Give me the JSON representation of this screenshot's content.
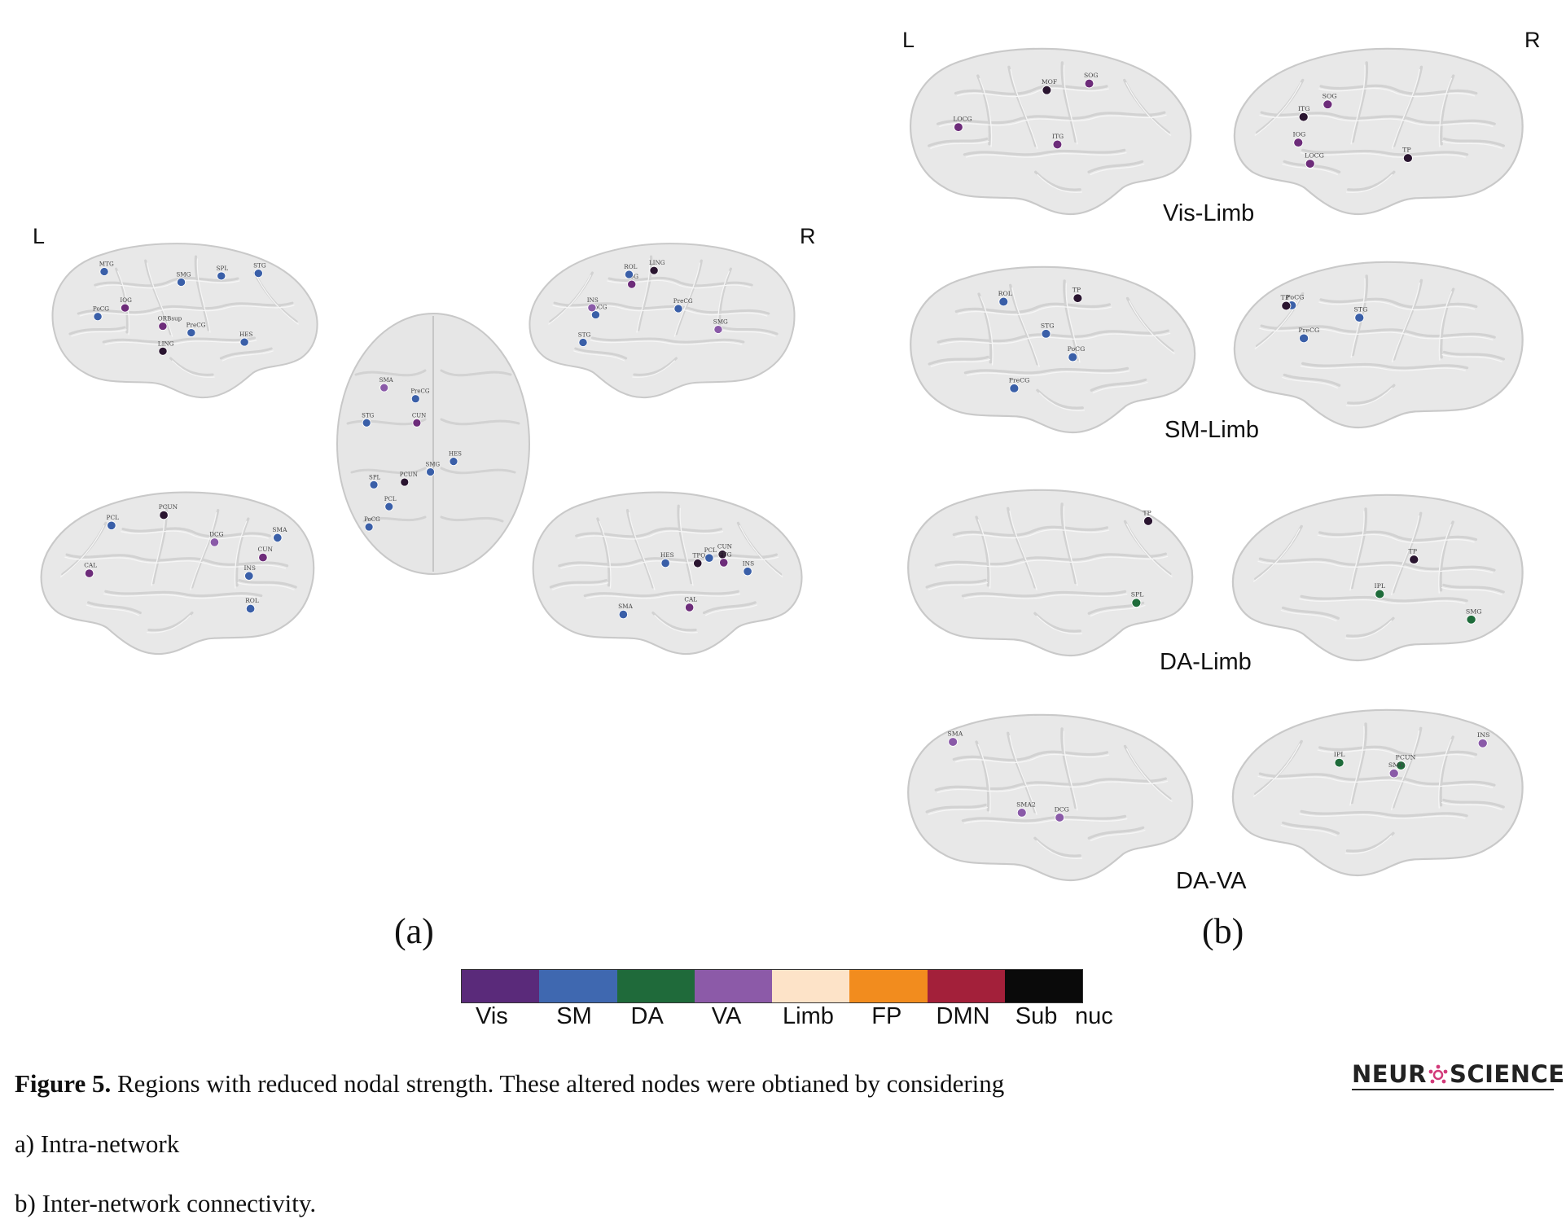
{
  "panel_a": {
    "left_label": "L",
    "right_label": "R",
    "letter": "(a)",
    "brains": [
      {
        "view": "left-lateral",
        "dots": [
          [
            "#3a5fa8",
            "SPL"
          ],
          [
            "#3a5fa8",
            "PoCG"
          ],
          [
            "#3a5fa8",
            "PreCG"
          ],
          [
            "#3a5fa8",
            "SMG"
          ],
          [
            "#6d2c7a",
            "ORBsup"
          ],
          [
            "#3a5fa8",
            "STG"
          ],
          [
            "#3a5fa8",
            "HES"
          ],
          [
            "#6d2c7a",
            "IOG"
          ],
          [
            "#2a1530",
            "LING"
          ],
          [
            "#3a5fa8",
            "MTG"
          ]
        ]
      },
      {
        "view": "left-medial",
        "dots": [
          [
            "#3a5fa8",
            "PCL"
          ],
          [
            "#3a5fa8",
            "SMA"
          ],
          [
            "#8a5aa8",
            "DCG"
          ],
          [
            "#6d2c7a",
            "CUN"
          ],
          [
            "#6d2c7a",
            "CAL"
          ],
          [
            "#3a5fa8",
            "INS"
          ],
          [
            "#2a1530",
            "PCUN"
          ],
          [
            "#3a5fa8",
            "ROL"
          ]
        ]
      },
      {
        "view": "axial",
        "dots": [
          [
            "#3a5fa8",
            "PoCG"
          ],
          [
            "#3a5fa8",
            "PreCG"
          ],
          [
            "#3a5fa8",
            "SPL"
          ],
          [
            "#8a5aa8",
            "SMA"
          ],
          [
            "#6d2c7a",
            "CUN"
          ],
          [
            "#3a5fa8",
            "PCL"
          ],
          [
            "#3a5fa8",
            "SMG"
          ],
          [
            "#2a1530",
            "PCUN"
          ],
          [
            "#3a5fa8",
            "STG"
          ],
          [
            "#3a5fa8",
            "HES"
          ]
        ]
      },
      {
        "view": "right-lateral",
        "dots": [
          [
            "#3a5fa8",
            "PoCG"
          ],
          [
            "#3a5fa8",
            "PreCG"
          ],
          [
            "#8a5aa8",
            "SMG"
          ],
          [
            "#3a5fa8",
            "STG"
          ],
          [
            "#6d2c7a",
            "IOG"
          ],
          [
            "#2a1530",
            "LING"
          ],
          [
            "#3a5fa8",
            "ROL"
          ],
          [
            "#8a5aa8",
            "INS"
          ]
        ]
      },
      {
        "view": "right-medial",
        "dots": [
          [
            "#3a5fa8",
            "PCL"
          ],
          [
            "#3a5fa8",
            "SMA"
          ],
          [
            "#3a5fa8",
            "INS"
          ],
          [
            "#3a5fa8",
            "HES"
          ],
          [
            "#6d2c7a",
            "CAL"
          ],
          [
            "#2a1530",
            "CUN"
          ],
          [
            "#6d2c7a",
            "FFG"
          ],
          [
            "#2a1530",
            "TPO"
          ]
        ]
      }
    ]
  },
  "panel_b": {
    "left_label": "L",
    "right_label": "R",
    "letter": "(b)",
    "rows": [
      {
        "title": "Vis-Limb",
        "left_dots": [
          [
            "#6d2c7a",
            "SOG"
          ],
          [
            "#6d2c7a",
            "LOCG"
          ],
          [
            "#6d2c7a",
            "ITG"
          ],
          [
            "#2a1530",
            "MOF"
          ]
        ],
        "right_dots": [
          [
            "#6d2c7a",
            "SOG"
          ],
          [
            "#6d2c7a",
            "LOCG"
          ],
          [
            "#6d2c7a",
            "IOG"
          ],
          [
            "#2a1530",
            "ITG"
          ],
          [
            "#2a1530",
            "TP"
          ]
        ]
      },
      {
        "title": "SM-Limb",
        "left_dots": [
          [
            "#3a5fa8",
            "PoCG"
          ],
          [
            "#3a5fa8",
            "PreCG"
          ],
          [
            "#3a5fa8",
            "ROL"
          ],
          [
            "#3a5fa8",
            "STG"
          ],
          [
            "#2a1530",
            "TP"
          ]
        ],
        "right_dots": [
          [
            "#3a5fa8",
            "PoCG"
          ],
          [
            "#3a5fa8",
            "PreCG"
          ],
          [
            "#3a5fa8",
            "STG"
          ],
          [
            "#2a1530",
            "TP"
          ]
        ]
      },
      {
        "title": "DA-Limb",
        "left_dots": [
          [
            "#1e6b3a",
            "SPL"
          ],
          [
            "#2a1530",
            "TP"
          ]
        ],
        "right_dots": [
          [
            "#1e6b3a",
            "IPL"
          ],
          [
            "#1e6b3a",
            "SMG"
          ],
          [
            "#2a1530",
            "TP"
          ]
        ]
      },
      {
        "title": "DA-VA",
        "left_dots": [
          [
            "#8a5aa8",
            "SMA"
          ],
          [
            "#8a5aa8",
            "DCG"
          ],
          [
            "#8a5aa8",
            "SMA2"
          ]
        ],
        "right_dots": [
          [
            "#1e6b3a",
            "PCUN"
          ],
          [
            "#1e6b3a",
            "IPL"
          ],
          [
            "#8a5aa8",
            "INS"
          ],
          [
            "#8a5aa8",
            "SMG"
          ]
        ]
      }
    ]
  },
  "colorbar": {
    "segments": [
      {
        "label": "Vis",
        "color": "#5a2a7a"
      },
      {
        "label": "SM",
        "color": "#3f68b0"
      },
      {
        "label": "DA",
        "color": "#1f6a3a"
      },
      {
        "label": "VA",
        "color": "#8c5aa8"
      },
      {
        "label": "Limb",
        "color": "#fde3c8"
      },
      {
        "label": "FP",
        "color": "#f28c1e"
      },
      {
        "label": "DMN",
        "color": "#a3203a"
      },
      {
        "label": "Sub",
        "color": "#0a0a0a"
      }
    ],
    "extra_label": "nuc"
  },
  "caption": {
    "figure_label": "Figure 5.",
    "line1": " Regions with reduced nodal strength. These altered nodes were obtianed by considering",
    "line2": "a) Intra-network",
    "line3": "b) Inter-network connectivity."
  },
  "logo": {
    "prefix": "NEUR",
    "suffix": "SCIENCE"
  }
}
